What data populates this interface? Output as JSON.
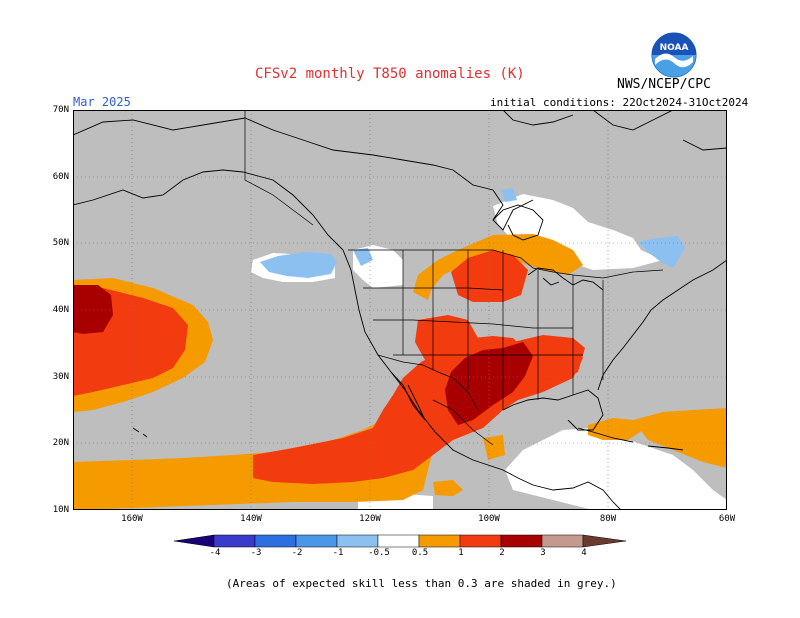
{
  "title": "CFSv2 monthly T850 anomalies (K)",
  "month": "Mar 2025",
  "initial_conditions": "initial conditions: 22Oct2024-31Oct2024",
  "agency": "NWS/NCEP/CPC",
  "logo_text": "NOAA",
  "note": "(Areas of expected skill less than 0.3 are shaded in grey.)",
  "lat_labels": [
    "70N",
    "60N",
    "50N",
    "40N",
    "30N",
    "20N",
    "10N"
  ],
  "lon_labels": [
    "160W",
    "140W",
    "120W",
    "100W",
    "80W",
    "60W"
  ],
  "colorbar": {
    "labels": [
      "-4",
      "-3",
      "-2",
      "-1",
      "-0.5",
      "0.5",
      "1",
      "2",
      "3",
      "4"
    ],
    "colors": [
      "#1a0078",
      "#3a3acb",
      "#2d6fe0",
      "#4a96e8",
      "#8cc0f0",
      "#ffffff",
      "#f59b00",
      "#f23b0e",
      "#a80000",
      "#c49a90",
      "#6a3a30"
    ]
  },
  "colors": {
    "skill_mask_grey": "#bebebe",
    "anomaly_0_5_to_1": "#f59b00",
    "anomaly_1_to_2": "#f23b0e",
    "anomaly_2_to_3": "#a80000",
    "anomaly_neg_0_5_to_neg_1": "#8cc0f0",
    "title_color": "#e03030",
    "month_color": "#2f5fd0"
  }
}
